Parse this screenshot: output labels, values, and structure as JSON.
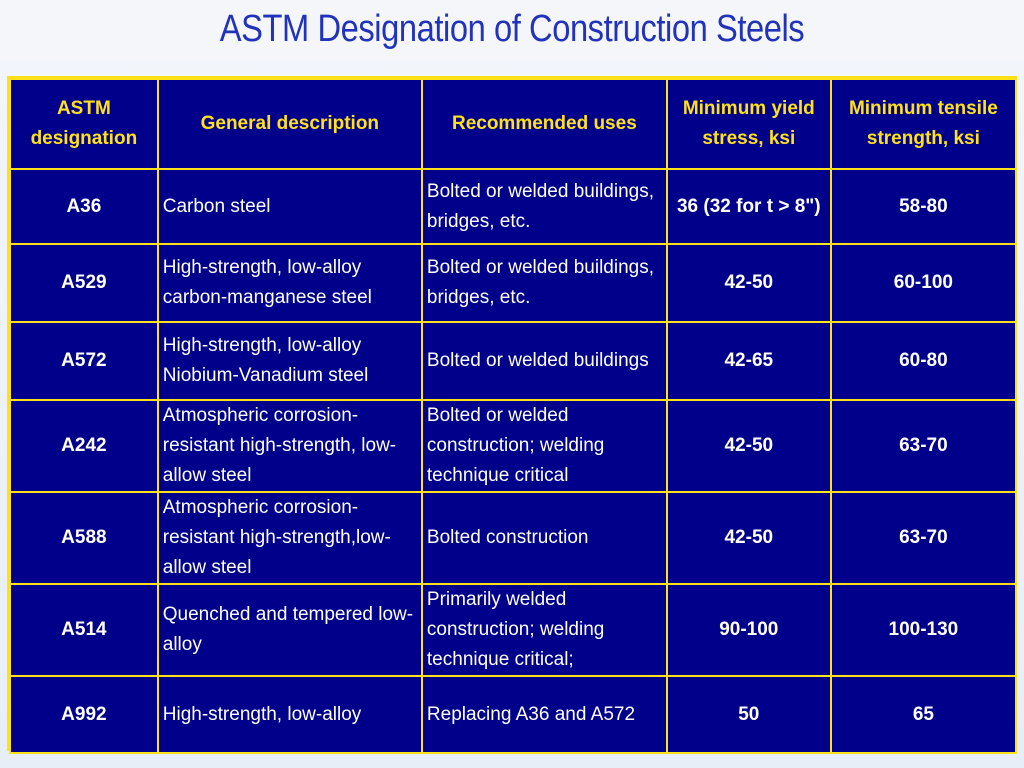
{
  "title": "ASTM Designation of Construction Steels",
  "table": {
    "headers": [
      "ASTM designation",
      "General description",
      "Recommended uses",
      "Minimum yield stress, ksi",
      "Minimum tensile strength, ksi"
    ],
    "rows": [
      [
        "A36",
        "Carbon steel",
        "Bolted or welded buildings, bridges, etc.",
        "36 (32 for t > 8\")",
        "58-80"
      ],
      [
        "A529",
        "High-strength, low-alloy carbon-manganese steel",
        "Bolted or welded buildings, bridges, etc.",
        "42-50",
        "60-100"
      ],
      [
        "A572",
        "High-strength, low-alloy Niobium-Vanadium steel",
        "Bolted or welded buildings",
        "42-65",
        "60-80"
      ],
      [
        "A242",
        "Atmospheric corrosion-resistant high-strength, low-allow steel",
        "Bolted or welded construction; welding technique critical",
        "42-50",
        "63-70"
      ],
      [
        "A588",
        "Atmospheric corrosion-resistant high-strength,low-allow steel",
        "Bolted construction",
        "42-50",
        "63-70"
      ],
      [
        "A514",
        "Quenched and tempered low-alloy",
        "Primarily welded construction; welding technique critical;",
        "90-100",
        "100-130"
      ],
      [
        "A992",
        "High-strength, low-alloy",
        "Replacing A36 and A572",
        "50",
        "65"
      ]
    ]
  },
  "colors": {
    "title": "#2233bb",
    "cell_background": "#00008b",
    "grid": "#ffe11a",
    "header_text": "#ffe11a",
    "body_text": "#ffffff"
  }
}
